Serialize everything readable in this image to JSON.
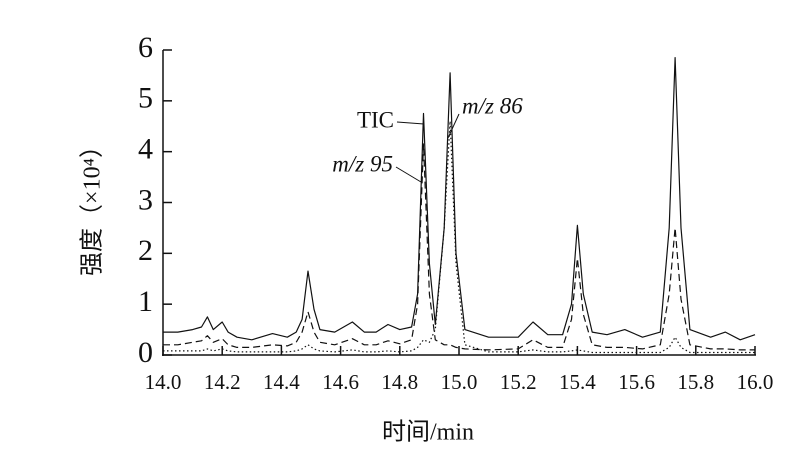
{
  "chart_data": {
    "type": "line",
    "xlabel": "时间/min",
    "ylabel": "强度（×10⁴）",
    "xlim": [
      14.0,
      16.0
    ],
    "ylim": [
      0,
      6
    ],
    "xticks": [
      {
        "value": 14.0,
        "label": "14.0"
      },
      14.2,
      14.4,
      14.6,
      14.8,
      {
        "value": 15.0,
        "label": "15.0"
      },
      15.2,
      15.4,
      15.6,
      15.8,
      {
        "value": 16.0,
        "label": "16.0"
      }
    ],
    "yticks": [
      0,
      1,
      2,
      3,
      4,
      5,
      6
    ],
    "x": [
      14.0,
      14.05,
      14.1,
      14.13,
      14.15,
      14.17,
      14.2,
      14.22,
      14.25,
      14.3,
      14.37,
      14.42,
      14.45,
      14.47,
      14.49,
      14.51,
      14.53,
      14.58,
      14.64,
      14.68,
      14.72,
      14.76,
      14.8,
      14.84,
      14.86,
      14.88,
      14.9,
      14.92,
      14.95,
      14.97,
      14.99,
      15.02,
      15.1,
      15.2,
      15.25,
      15.3,
      15.35,
      15.38,
      15.4,
      15.42,
      15.45,
      15.5,
      15.56,
      15.62,
      15.68,
      15.71,
      15.73,
      15.75,
      15.78,
      15.85,
      15.9,
      15.95,
      16.0
    ],
    "series": [
      {
        "name": "TIC",
        "color": "#111111",
        "style": "solid",
        "values": [
          0.45,
          0.45,
          0.5,
          0.55,
          0.75,
          0.5,
          0.65,
          0.45,
          0.35,
          0.3,
          0.42,
          0.35,
          0.45,
          0.7,
          1.65,
          0.9,
          0.5,
          0.45,
          0.65,
          0.45,
          0.45,
          0.6,
          0.5,
          0.55,
          1.2,
          4.75,
          1.8,
          0.6,
          2.5,
          5.55,
          2.0,
          0.5,
          0.35,
          0.35,
          0.65,
          0.4,
          0.4,
          1.0,
          2.55,
          1.2,
          0.45,
          0.4,
          0.5,
          0.35,
          0.45,
          2.5,
          5.85,
          2.5,
          0.5,
          0.35,
          0.45,
          0.3,
          0.4
        ]
      },
      {
        "name": "m/z 86",
        "color": "#111111",
        "style": "dotted",
        "values": [
          0.08,
          0.08,
          0.08,
          0.08,
          0.12,
          0.08,
          0.12,
          0.08,
          0.06,
          0.06,
          0.06,
          0.06,
          0.08,
          0.12,
          0.2,
          0.12,
          0.08,
          0.06,
          0.1,
          0.06,
          0.06,
          0.08,
          0.06,
          0.08,
          0.15,
          0.3,
          0.25,
          0.5,
          2.5,
          4.6,
          1.8,
          0.2,
          0.06,
          0.06,
          0.1,
          0.06,
          0.06,
          0.08,
          0.1,
          0.08,
          0.05,
          0.05,
          0.05,
          0.05,
          0.05,
          0.15,
          0.35,
          0.15,
          0.05,
          0.05,
          0.05,
          0.05,
          0.05
        ]
      },
      {
        "name": "m/z 95",
        "color": "#111111",
        "style": "dashed",
        "values": [
          0.2,
          0.2,
          0.25,
          0.28,
          0.38,
          0.25,
          0.32,
          0.2,
          0.15,
          0.15,
          0.2,
          0.18,
          0.25,
          0.45,
          0.85,
          0.45,
          0.25,
          0.2,
          0.32,
          0.2,
          0.2,
          0.28,
          0.22,
          0.3,
          1.0,
          4.15,
          1.2,
          0.3,
          0.2,
          0.2,
          0.15,
          0.12,
          0.1,
          0.12,
          0.3,
          0.15,
          0.15,
          0.7,
          1.9,
          0.8,
          0.2,
          0.15,
          0.15,
          0.12,
          0.2,
          1.2,
          2.5,
          1.1,
          0.2,
          0.12,
          0.12,
          0.1,
          0.1
        ]
      }
    ]
  }
}
